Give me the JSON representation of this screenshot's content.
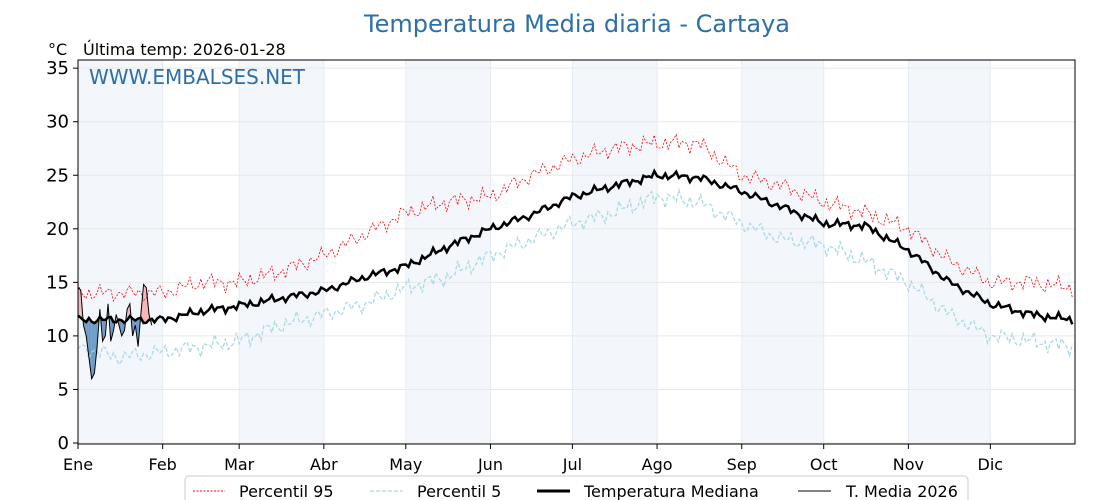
{
  "chart_data": {
    "type": "line",
    "title": "Temperatura Media diaria - Cartaya",
    "unit_label": "°C",
    "subtitle": "Última temp: 2026-01-28",
    "watermark": "WWW.EMBALSES.NET",
    "ylim": [
      0,
      35.5
    ],
    "yticks": [
      0,
      5,
      10,
      15,
      20,
      25,
      30,
      35
    ],
    "xlim_days": [
      0,
      365
    ],
    "months": [
      {
        "label": "Ene",
        "day": 0
      },
      {
        "label": "Feb",
        "day": 31
      },
      {
        "label": "Mar",
        "day": 59
      },
      {
        "label": "Abr",
        "day": 90
      },
      {
        "label": "May",
        "day": 120
      },
      {
        "label": "Jun",
        "day": 151
      },
      {
        "label": "Jul",
        "day": 181
      },
      {
        "label": "Ago",
        "day": 212
      },
      {
        "label": "Sep",
        "day": 243
      },
      {
        "label": "Oct",
        "day": 273
      },
      {
        "label": "Nov",
        "day": 304
      },
      {
        "label": "Dic",
        "day": 334
      }
    ],
    "x_day": [
      0,
      15,
      31,
      45,
      59,
      74,
      90,
      105,
      120,
      135,
      151,
      166,
      181,
      196,
      212,
      227,
      243,
      258,
      273,
      288,
      304,
      319,
      334,
      349,
      364
    ],
    "series": [
      {
        "name": "Percentil 95",
        "color": "#ff0000",
        "values": [
          14,
          14,
          14,
          15,
          15,
          16,
          17.5,
          19.5,
          21.5,
          22.5,
          23,
          25,
          26.5,
          27.5,
          28,
          28,
          25,
          24,
          22.5,
          21.5,
          20,
          17,
          15,
          15,
          14.5
        ]
      },
      {
        "name": "Percentil 5",
        "color": "#add8e6",
        "values": [
          9,
          8,
          8.5,
          9,
          9.5,
          11,
          12,
          13,
          14.5,
          15.5,
          17.5,
          19,
          20.5,
          21.5,
          23,
          22.5,
          20.5,
          19,
          18.5,
          17,
          15,
          12,
          10,
          9.5,
          9
        ]
      },
      {
        "name": "Temperatura Mediana",
        "color": "#000000",
        "values": [
          11.5,
          11.5,
          11.5,
          12.3,
          12.8,
          13.5,
          14.2,
          15.5,
          16.5,
          18.3,
          20,
          21.3,
          23,
          24,
          25,
          24.8,
          23.5,
          22,
          20.5,
          20.3,
          18,
          15,
          13,
          12,
          11.5
        ]
      },
      {
        "name": "T. Media 2026",
        "color": "#000000",
        "daily_values": [
          14.5,
          14.3,
          11,
          10,
          8,
          6,
          6.5,
          9,
          12.5,
          9.5,
          10,
          13,
          9.5,
          10.5,
          12,
          11,
          10,
          10.5,
          12.5,
          13,
          10,
          11,
          9,
          12,
          14.8,
          14.5,
          12,
          11
        ]
      }
    ],
    "fill_above_color": "#f4b6b6",
    "fill_below_color": "#6d9cc8",
    "legend_position": "bottom-center"
  }
}
